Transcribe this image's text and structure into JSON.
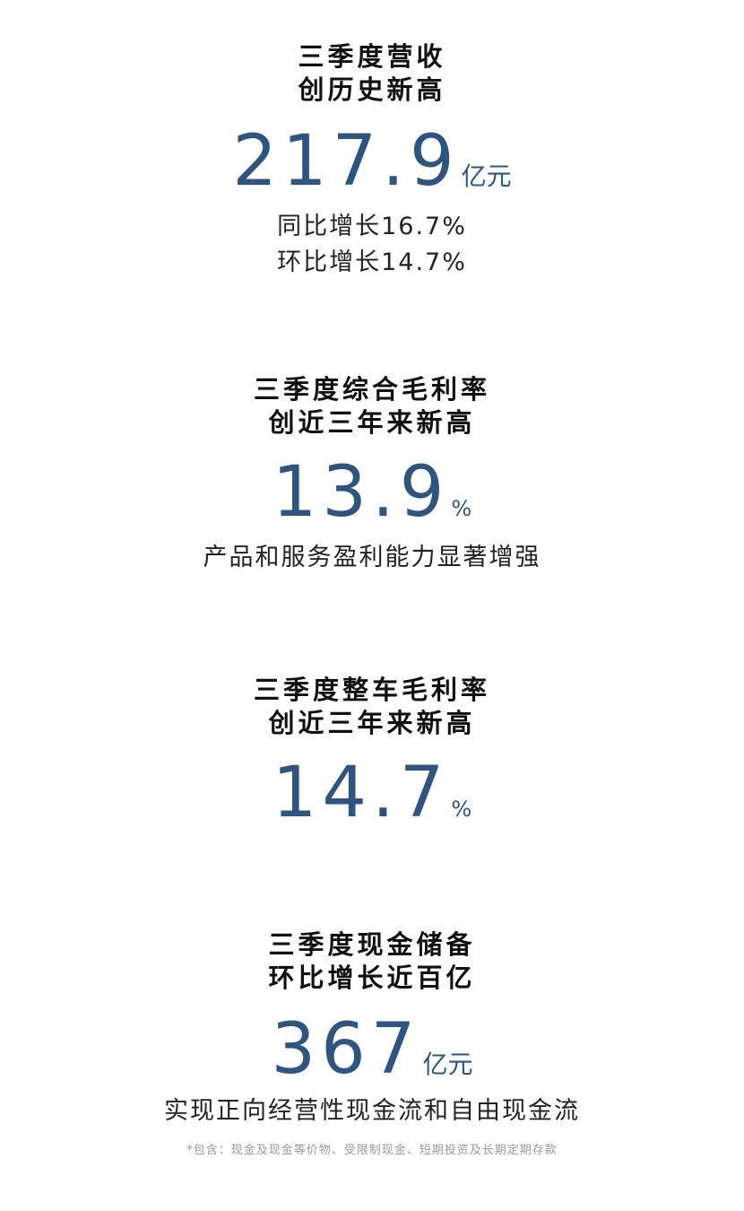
{
  "accent_color": "#2e5481",
  "sections": [
    {
      "title_lines": [
        "三季度营收",
        "创历史新高"
      ],
      "value": "217.9",
      "unit": "亿元",
      "subtitles": [
        "同比增长16.7%",
        "环比增长14.7%"
      ]
    },
    {
      "title_lines": [
        "三季度综合毛利率",
        "创近三年来新高"
      ],
      "value": "13.9",
      "unit": "%",
      "subtitles": [
        "产品和服务盈利能力显著增强"
      ]
    },
    {
      "title_lines": [
        "三季度整车毛利率",
        "创近三年来新高"
      ],
      "value": "14.7",
      "unit": "%",
      "subtitles": []
    },
    {
      "title_lines": [
        "三季度现金储备",
        "环比增长近百亿"
      ],
      "value": "367",
      "unit": "亿元",
      "subtitles": [
        "实现正向经营性现金流和自由现金流"
      ]
    }
  ],
  "footnote": "*包含：现金及现金等价物、受限制现金、短期投资及长期定期存款"
}
